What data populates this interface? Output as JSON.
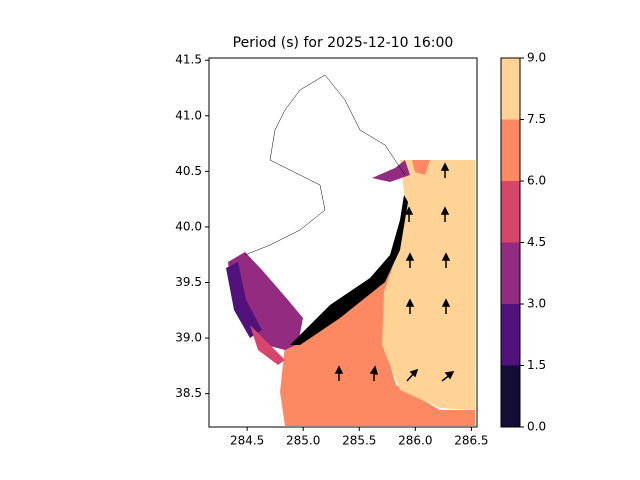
{
  "chart_data": {
    "type": "contour-map",
    "title": "Period (s) for 2025-12-10 16:00",
    "xlim": [
      284.16,
      286.55
    ],
    "xticks": [
      {
        "value": 284.5,
        "label": "284.5"
      },
      {
        "value": 285.0,
        "label": "285.0"
      },
      {
        "value": 285.5,
        "label": "285.5"
      },
      {
        "value": 286.0,
        "label": "286.0"
      },
      {
        "value": 286.5,
        "label": "286.5"
      }
    ],
    "ylim": [
      38.2,
      41.52
    ],
    "yticks": [
      38.5,
      {
        "value": 39.0,
        "label": "39.0"
      },
      39.5,
      {
        "value": 40.0,
        "label": "40.0"
      },
      40.5,
      {
        "value": 41.0,
        "label": "41.0"
      },
      41.5
    ],
    "colorbar": {
      "levels": [
        {
          "value": 0,
          "label": "0.0"
        },
        1.5,
        {
          "value": 3,
          "label": "3.0"
        },
        4.5,
        {
          "value": 6,
          "label": "6.0"
        },
        7.5,
        {
          "value": 9,
          "label": "9.0"
        }
      ],
      "colors": [
        "#140e36",
        "#51127c",
        "#932b80",
        "#d6456c",
        "#fc8961",
        "#fed395"
      ]
    }
  }
}
